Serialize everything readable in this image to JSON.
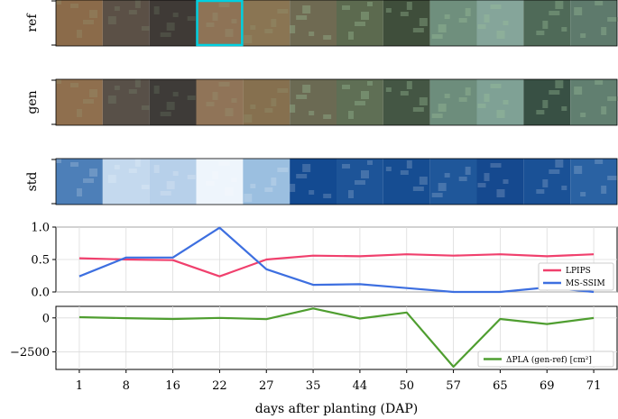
{
  "chart_data": [
    {
      "type": "image_grid",
      "row_labels": [
        "ref",
        "gen",
        "std"
      ],
      "columns": [
        "1",
        "8",
        "16",
        "22",
        "27",
        "35",
        "44",
        "50",
        "57",
        "65",
        "69",
        "71"
      ],
      "highlighted": {
        "row": "ref",
        "column": "22",
        "color": "#00d0e0"
      },
      "palettes": {
        "ref": [
          "#8b6b4a",
          "#5b5046",
          "#3f3a36",
          "#8e7356",
          "#8a7553",
          "#6f6a52",
          "#5c6a4f",
          "#3f4e3b",
          "#6f8f7d",
          "#85a59a",
          "#4f6a58",
          "#5e7a6c"
        ],
        "gen": [
          "#8f6f4e",
          "#585048",
          "#3e3b38",
          "#907458",
          "#86704f",
          "#6b6a53",
          "#5f6f55",
          "#445644",
          "#6d8d7c",
          "#7fa195",
          "#385044",
          "#617f70"
        ],
        "std": [
          "#4d7fb8",
          "#c4d9ee",
          "#b7d0ea",
          "#eef5fc",
          "#9bbfe0",
          "#134a91",
          "#1d5498",
          "#164d92",
          "#1f579a",
          "#15498f",
          "#1a5196",
          "#2a62a3"
        ]
      }
    },
    {
      "type": "line",
      "x": [
        "1",
        "8",
        "16",
        "22",
        "27",
        "35",
        "44",
        "50",
        "57",
        "65",
        "69",
        "71"
      ],
      "series": [
        {
          "name": "LPIPS",
          "color": "#f0406d",
          "values": [
            0.52,
            0.5,
            0.49,
            0.24,
            0.5,
            0.56,
            0.55,
            0.58,
            0.56,
            0.58,
            0.55,
            0.58
          ]
        },
        {
          "name": "MS-SSIM",
          "color": "#3d6fe0",
          "values": [
            0.24,
            0.53,
            0.53,
            0.99,
            0.35,
            0.11,
            0.12,
            0.06,
            0.0,
            0.0,
            0.07,
            0.0
          ]
        }
      ],
      "ylim": [
        0,
        1.0
      ],
      "yticks": [
        "0.0",
        "0.5",
        "1.0"
      ],
      "grid": true,
      "legend": "bottom-right"
    },
    {
      "type": "line",
      "x": [
        "1",
        "8",
        "16",
        "22",
        "27",
        "35",
        "44",
        "50",
        "57",
        "65",
        "69",
        "71"
      ],
      "series": [
        {
          "name": "ΔPLA (gen-ref) [cm²]",
          "color": "#4f9e30",
          "values": [
            50,
            -20,
            -80,
            0,
            -90,
            700,
            -50,
            400,
            -3600,
            -80,
            -450,
            -10
          ]
        }
      ],
      "ylim": [
        -3800,
        850
      ],
      "yticks": [
        "0",
        "−2500"
      ],
      "xlabel": "days after planting (DAP)",
      "grid": true,
      "legend": "bottom-right"
    }
  ]
}
